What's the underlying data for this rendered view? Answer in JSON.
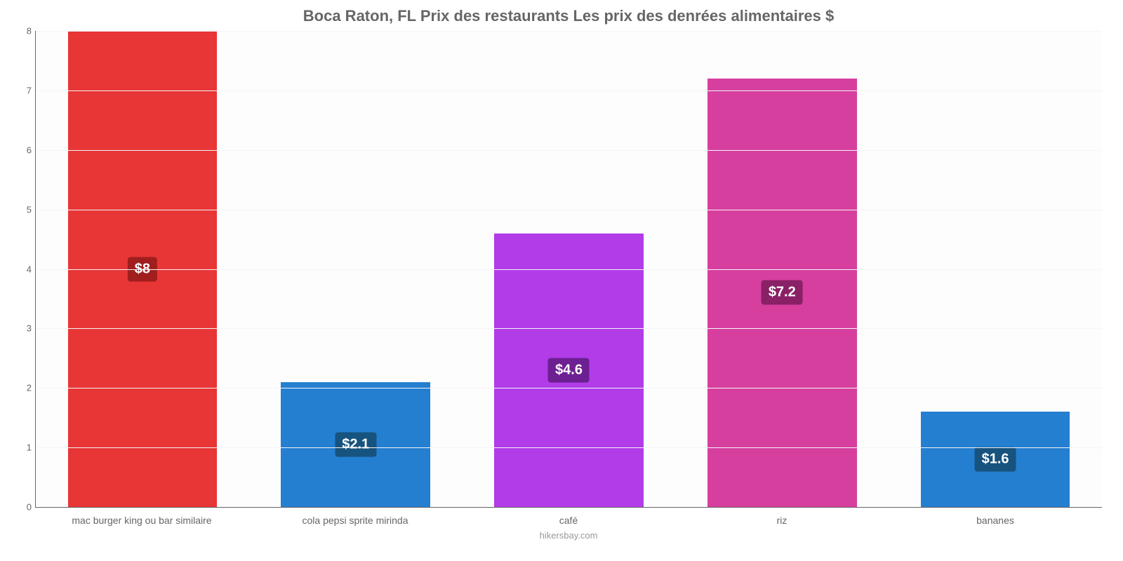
{
  "chart": {
    "type": "bar",
    "title": "Boca Raton, FL Prix des restaurants Les prix des denrées alimentaires $",
    "title_fontsize": 22,
    "title_color": "#666666",
    "background_color": "#ffffff",
    "plot_background": "#fdfdfd",
    "grid_color": "#f5f5f5",
    "axis_color": "#666666",
    "ylim": [
      0,
      8
    ],
    "ytick_step": 1,
    "yticks": [
      "0",
      "1",
      "2",
      "3",
      "4",
      "5",
      "6",
      "7",
      "8"
    ],
    "tick_fontsize": 13,
    "tick_color": "#666666",
    "xlabel_fontsize": 14,
    "xlabel_color": "#666666",
    "bar_width_pct": 70,
    "value_label_fontsize": 20,
    "value_label_color": "#ffffff",
    "categories": [
      "mac burger king ou bar similaire",
      "cola pepsi sprite mirinda",
      "café",
      "riz",
      "bananes"
    ],
    "values": [
      8,
      2.1,
      4.6,
      7.2,
      1.6
    ],
    "display_values": [
      "$8",
      "$2.1",
      "$4.6",
      "$7.2",
      "$1.6"
    ],
    "bar_colors": [
      "#e83535",
      "#247fd1",
      "#b13ce8",
      "#d63f9e",
      "#247fd1"
    ],
    "label_bg_colors": [
      "#a01e1e",
      "#16537e",
      "#6d2091",
      "#8a2066",
      "#16537e"
    ],
    "footer": "hikersbay.com",
    "footer_color": "#999999",
    "footer_fontsize": 13
  }
}
